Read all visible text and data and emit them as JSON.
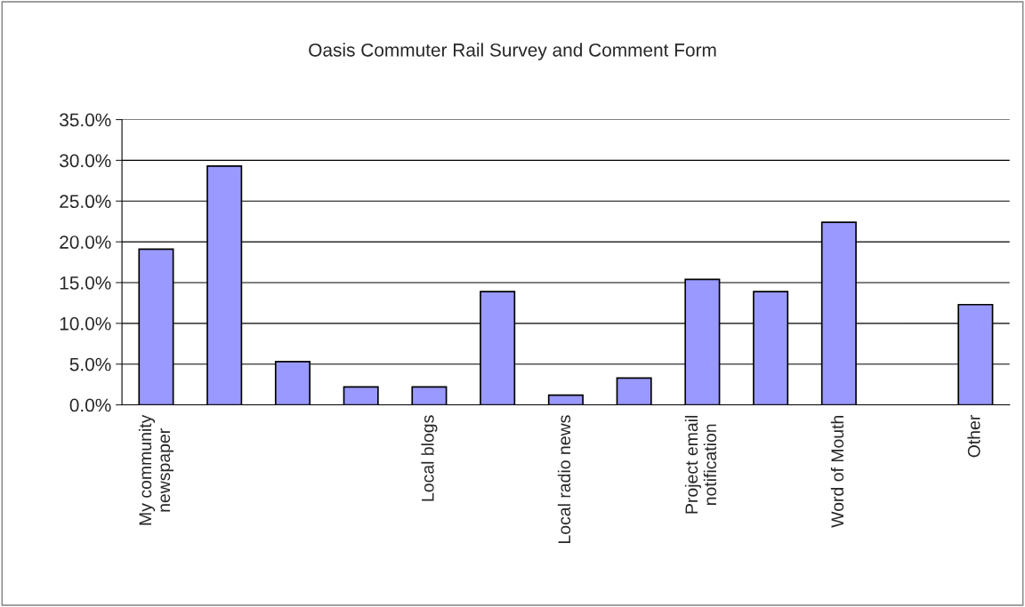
{
  "chart_data": {
    "type": "bar",
    "title": "Oasis Commuter Rail Survey and Comment Form",
    "categories": [
      "My community newspaper",
      null,
      null,
      null,
      "Local blogs",
      null,
      "Local radio news",
      null,
      "Project email notification",
      null,
      "Word of Mouth",
      null,
      "Other"
    ],
    "values": [
      19.1,
      29.3,
      5.3,
      2.2,
      2.2,
      13.9,
      1.2,
      3.3,
      15.4,
      13.9,
      22.4,
      null,
      12.3
    ],
    "color": "#9999ff",
    "ylim": [
      0,
      35
    ],
    "yticks": [
      {
        "value": 0,
        "label": "0.0%"
      },
      {
        "value": 5,
        "label": "5.0%"
      },
      {
        "value": 10,
        "label": "10.0%"
      },
      {
        "value": 15,
        "label": "15.0%"
      },
      {
        "value": 20,
        "label": "20.0%"
      },
      {
        "value": 25,
        "label": "25.0%"
      },
      {
        "value": 30,
        "label": "30.0%"
      },
      {
        "value": 35,
        "label": "35.0%"
      }
    ],
    "grid": "y"
  }
}
